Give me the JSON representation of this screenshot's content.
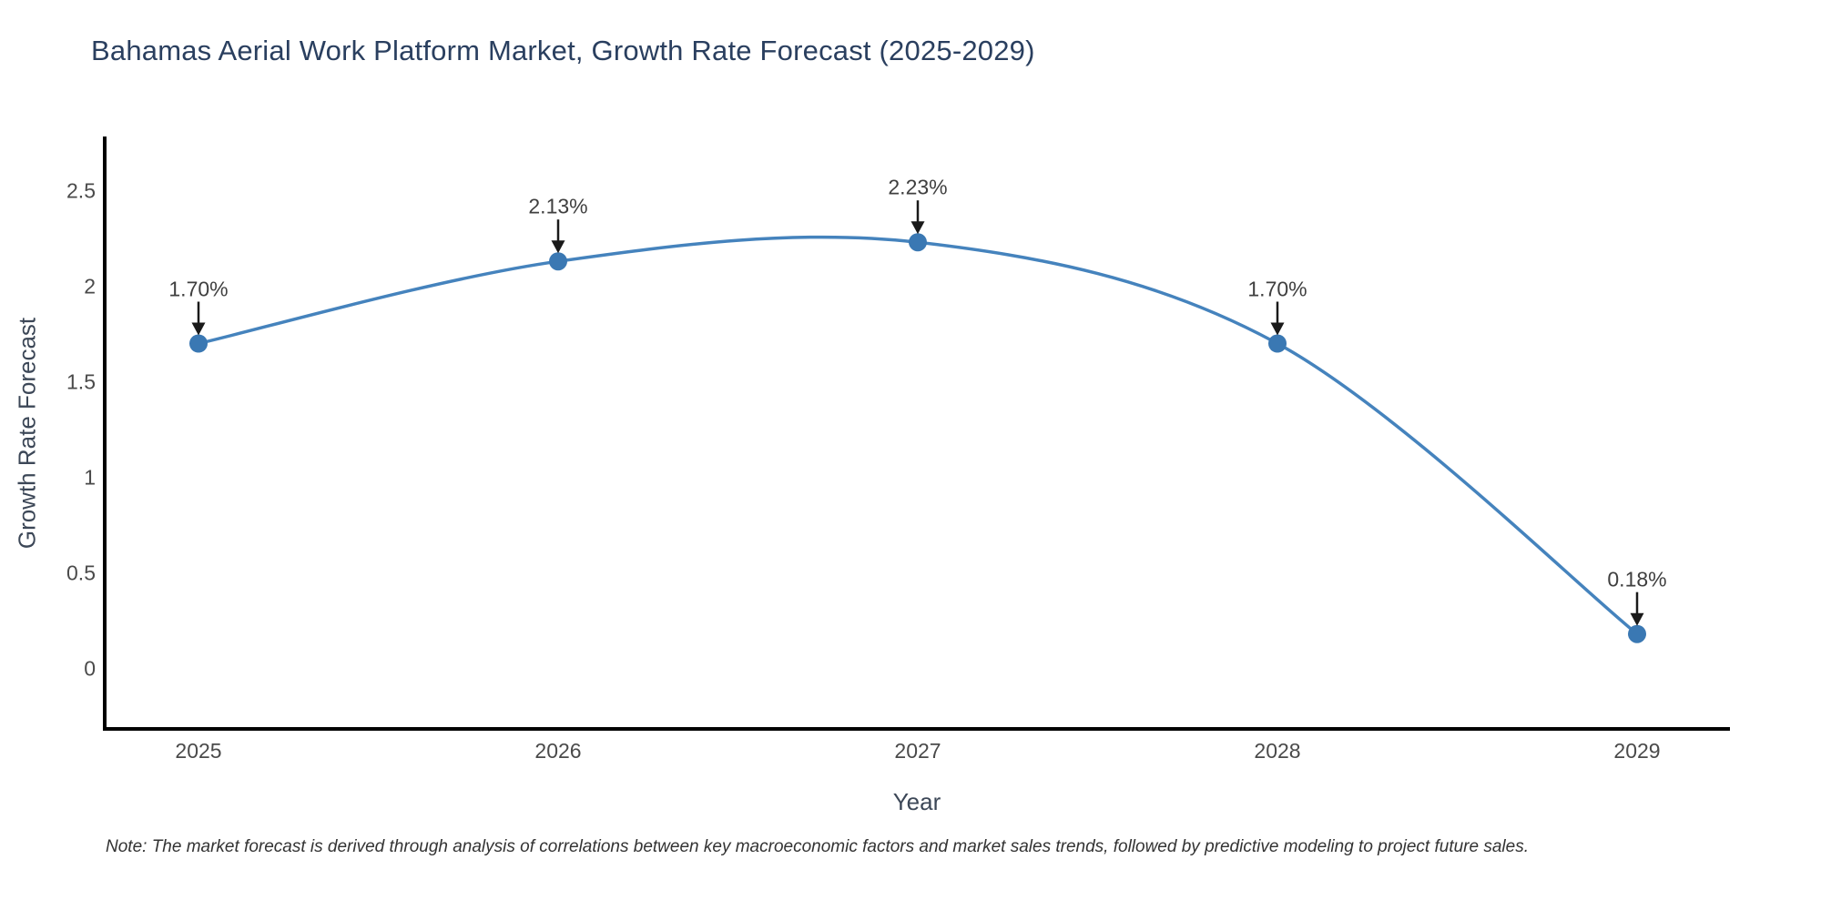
{
  "title": "Bahamas Aerial Work Platform Market, Growth Rate Forecast (2025-2029)",
  "note": "Note: The market forecast is derived through analysis of correlations between key macroeconomic factors and market sales trends, followed by predictive modeling to project future sales.",
  "chart_data": {
    "type": "line",
    "title": "Bahamas Aerial Work Platform Market, Growth Rate Forecast (2025-2029)",
    "xlabel": "Year",
    "ylabel": "Growth Rate Forecast",
    "categories": [
      "2025",
      "2026",
      "2027",
      "2028",
      "2029"
    ],
    "values": [
      1.7,
      2.13,
      2.23,
      1.7,
      0.18
    ],
    "point_labels": [
      "1.70%",
      "2.13%",
      "2.23%",
      "1.70%",
      "0.18%"
    ],
    "y_ticks": [
      0,
      0.5,
      1,
      1.5,
      2,
      2.5
    ],
    "y_tick_labels": [
      "0",
      "0.5",
      "1",
      "1.5",
      "2",
      "2.5"
    ],
    "ylim": [
      -0.32,
      2.78
    ],
    "line_shape": "spline",
    "grid": false,
    "legend": "none",
    "annotations_arrows": true,
    "colors": {
      "line": "#4583bd",
      "marker": "#3a78b3",
      "axis": "#000000",
      "arrow": "#1a1a1a",
      "tick_label": "#4a4a4a",
      "title": "#2a3f5f",
      "annotation_text": "#3f3f3f"
    }
  }
}
